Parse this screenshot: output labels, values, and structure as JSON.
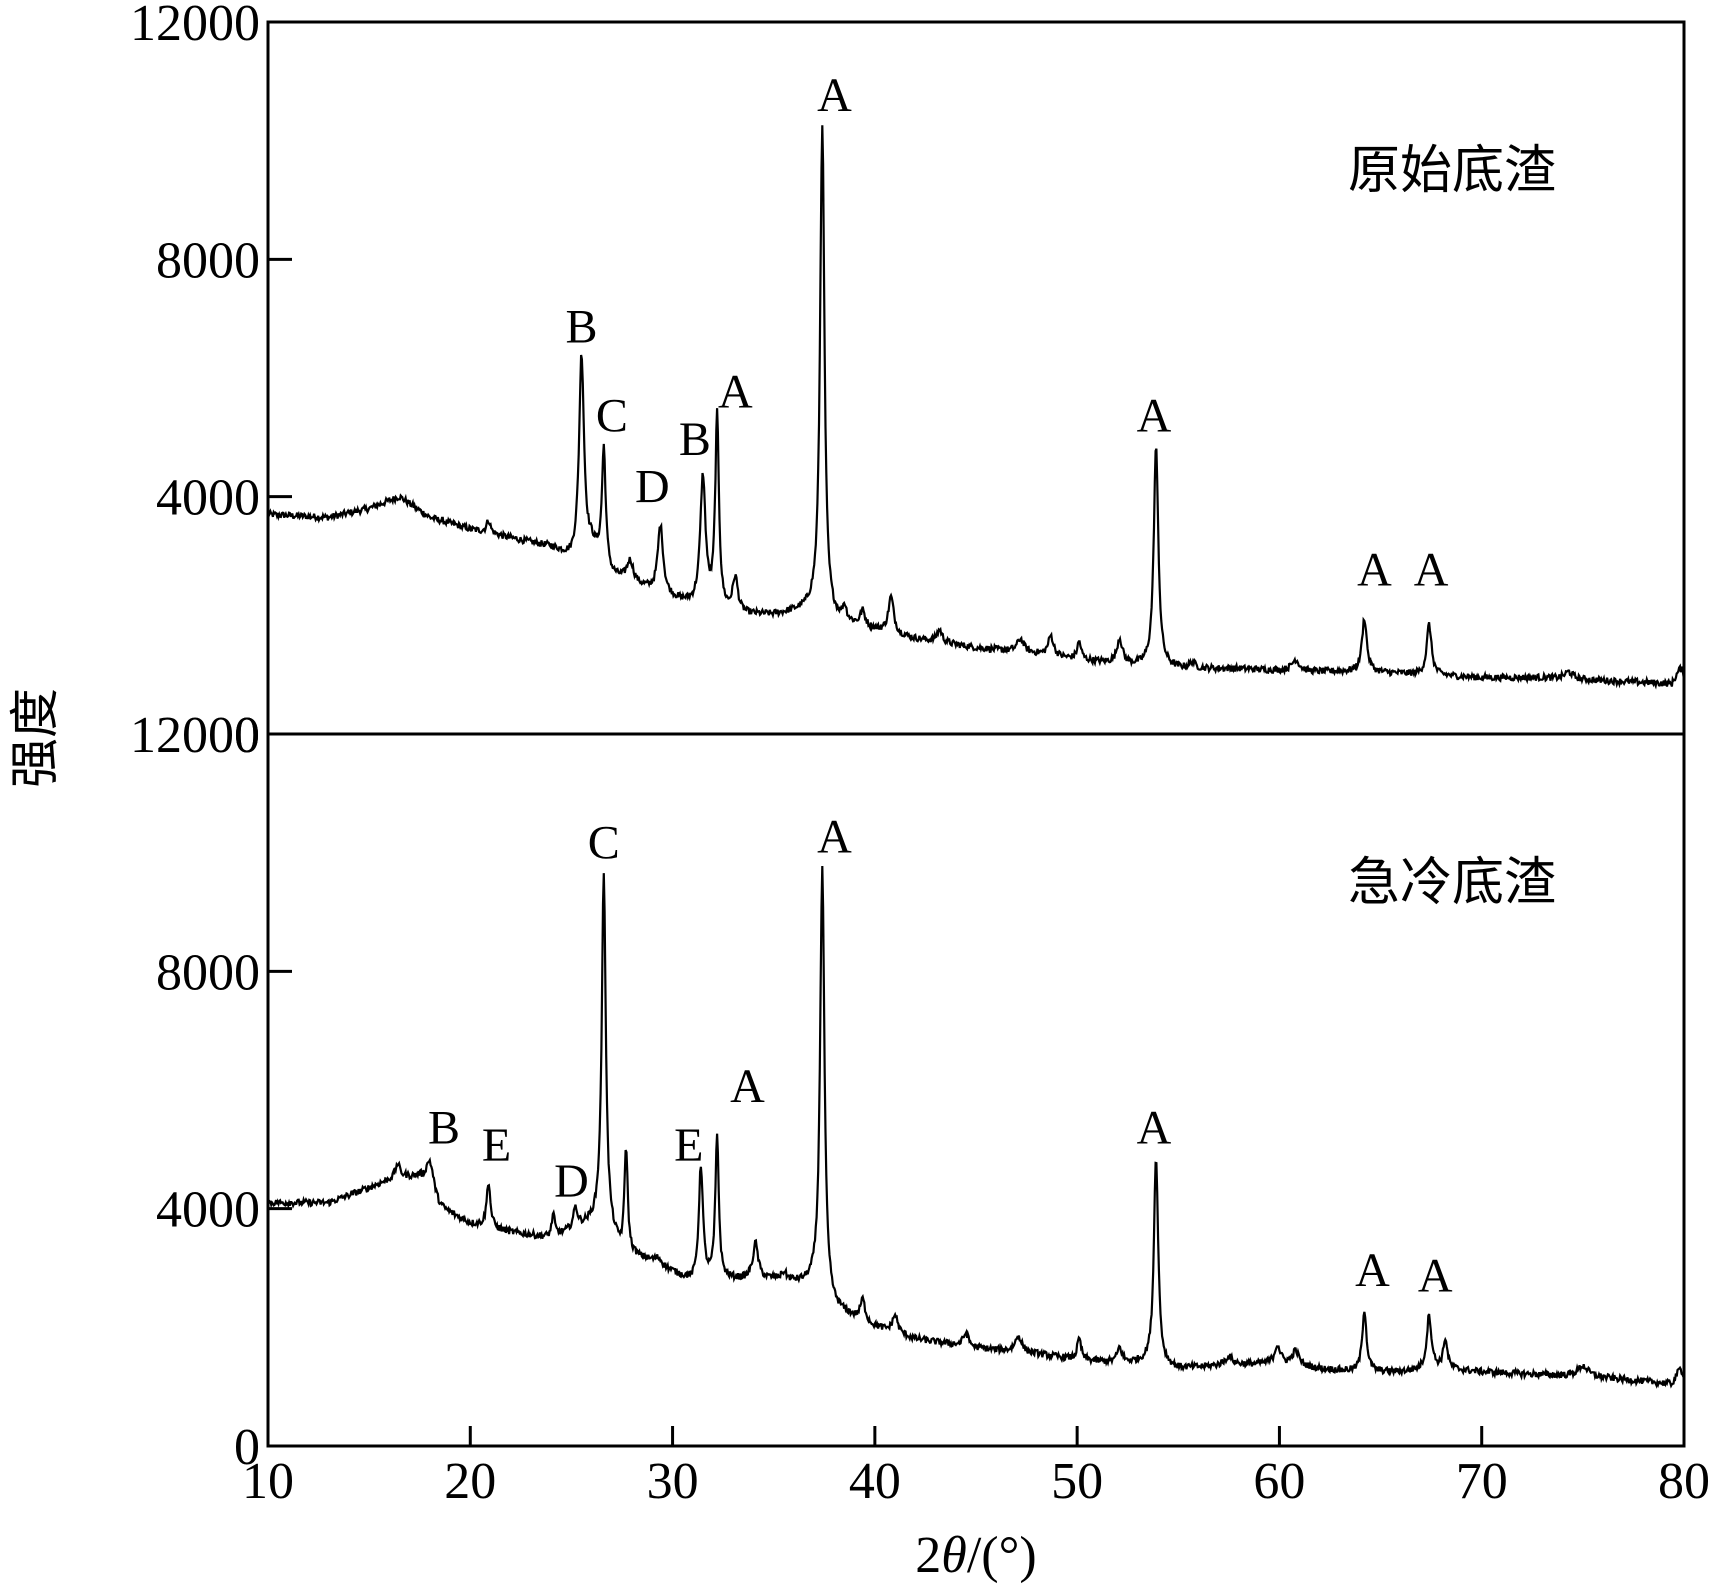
{
  "chart_data": {
    "type": "line",
    "xlabel": "2θ/(°)",
    "xlabel_prefix": "2",
    "xlabel_theta": "θ",
    "xlabel_unit": "/(°)",
    "ylabel": "强度",
    "xlim": [
      10,
      80
    ],
    "ylim": [
      0,
      12000
    ],
    "x_ticks": [
      "10",
      "20",
      "30",
      "40",
      "50",
      "60",
      "70",
      "80"
    ],
    "y_ticks": [
      "0",
      "4000",
      "8000",
      "12000"
    ],
    "grid": false,
    "panels": [
      {
        "title": "原始底渣",
        "baseline": [
          [
            10,
            3700
          ],
          [
            13,
            3650
          ],
          [
            15,
            3800
          ],
          [
            16.5,
            4000
          ],
          [
            18,
            3650
          ],
          [
            20,
            3450
          ],
          [
            22,
            3300
          ],
          [
            24,
            3150
          ],
          [
            25,
            2950
          ],
          [
            26,
            3150
          ],
          [
            27,
            2650
          ],
          [
            29,
            2400
          ],
          [
            31,
            2150
          ],
          [
            33,
            2000
          ],
          [
            35,
            2000
          ],
          [
            37,
            2100
          ],
          [
            38,
            1900
          ],
          [
            40,
            1750
          ],
          [
            42,
            1600
          ],
          [
            45,
            1450
          ],
          [
            48,
            1350
          ],
          [
            50,
            1250
          ],
          [
            53,
            1150
          ],
          [
            55,
            1100
          ],
          [
            58,
            1100
          ],
          [
            61,
            1050
          ],
          [
            64,
            1050
          ],
          [
            67,
            1000
          ],
          [
            70,
            950
          ],
          [
            73,
            950
          ],
          [
            76,
            900
          ],
          [
            79.4,
            850
          ],
          [
            79.8,
            1100
          ],
          [
            80,
            1050
          ]
        ],
        "peaks": [
          {
            "x": 20.9,
            "y": 3600,
            "w": 0.15
          },
          {
            "x": 25.5,
            "y": 6400,
            "w": 0.18
          },
          {
            "x": 26.6,
            "y": 4800,
            "w": 0.14
          },
          {
            "x": 27.9,
            "y": 2900,
            "w": 0.25
          },
          {
            "x": 29.4,
            "y": 3500,
            "w": 0.2
          },
          {
            "x": 31.5,
            "y": 4300,
            "w": 0.2
          },
          {
            "x": 32.2,
            "y": 5300,
            "w": 0.14
          },
          {
            "x": 33.1,
            "y": 2600,
            "w": 0.2
          },
          {
            "x": 37.4,
            "y": 10300,
            "w": 0.16
          },
          {
            "x": 38.5,
            "y": 2100,
            "w": 0.15
          },
          {
            "x": 39.4,
            "y": 2050,
            "w": 0.18
          },
          {
            "x": 40.8,
            "y": 2300,
            "w": 0.2
          },
          {
            "x": 43.2,
            "y": 1750,
            "w": 0.2
          },
          {
            "x": 47.2,
            "y": 1600,
            "w": 0.25
          },
          {
            "x": 48.7,
            "y": 1650,
            "w": 0.2
          },
          {
            "x": 50.1,
            "y": 1550,
            "w": 0.15
          },
          {
            "x": 52.1,
            "y": 1600,
            "w": 0.2
          },
          {
            "x": 53.9,
            "y": 4850,
            "w": 0.17
          },
          {
            "x": 55.7,
            "y": 1200,
            "w": 0.2
          },
          {
            "x": 60.8,
            "y": 1250,
            "w": 0.3
          },
          {
            "x": 64.2,
            "y": 1950,
            "w": 0.18
          },
          {
            "x": 67.4,
            "y": 1850,
            "w": 0.18
          },
          {
            "x": 74.3,
            "y": 1050,
            "w": 0.3
          }
        ],
        "annotations": [
          {
            "label": "A",
            "x": 38.0,
            "y": 10500
          },
          {
            "label": "B",
            "x": 25.5,
            "y": 6600
          },
          {
            "label": "C",
            "x": 27.0,
            "y": 5100
          },
          {
            "label": "D",
            "x": 29.0,
            "y": 3900
          },
          {
            "label": "B",
            "x": 31.1,
            "y": 4700
          },
          {
            "label": "A",
            "x": 33.1,
            "y": 5500
          },
          {
            "label": "A",
            "x": 53.8,
            "y": 5100
          },
          {
            "label": "A",
            "x": 64.7,
            "y": 2500
          },
          {
            "label": "A",
            "x": 67.5,
            "y": 2500
          }
        ]
      },
      {
        "title": "急冷底渣",
        "baseline": [
          [
            10,
            4100
          ],
          [
            13,
            4100
          ],
          [
            15,
            4350
          ],
          [
            16.5,
            4550
          ],
          [
            17.5,
            4500
          ],
          [
            18.5,
            4000
          ],
          [
            20,
            3750
          ],
          [
            22,
            3600
          ],
          [
            24,
            3500
          ],
          [
            25.5,
            3700
          ],
          [
            26.5,
            3800
          ],
          [
            27.5,
            3250
          ],
          [
            29,
            3100
          ],
          [
            31,
            2750
          ],
          [
            33,
            2800
          ],
          [
            35,
            2800
          ],
          [
            37,
            2700
          ],
          [
            38,
            2300
          ],
          [
            40,
            2000
          ],
          [
            42,
            1800
          ],
          [
            45,
            1650
          ],
          [
            48,
            1550
          ],
          [
            50,
            1450
          ],
          [
            52,
            1400
          ],
          [
            53.5,
            1400
          ],
          [
            55,
            1300
          ],
          [
            57,
            1350
          ],
          [
            60,
            1400
          ],
          [
            62,
            1300
          ],
          [
            64,
            1250
          ],
          [
            66,
            1250
          ],
          [
            68,
            1300
          ],
          [
            70,
            1250
          ],
          [
            73,
            1200
          ],
          [
            76,
            1150
          ],
          [
            79.4,
            1050
          ],
          [
            79.8,
            1300
          ],
          [
            80,
            1200
          ]
        ],
        "peaks": [
          {
            "x": 16.4,
            "y": 4750,
            "w": 0.15
          },
          {
            "x": 18.0,
            "y": 4800,
            "w": 0.3
          },
          {
            "x": 20.9,
            "y": 4450,
            "w": 0.14
          },
          {
            "x": 24.1,
            "y": 3900,
            "w": 0.12
          },
          {
            "x": 25.2,
            "y": 4000,
            "w": 0.15
          },
          {
            "x": 26.6,
            "y": 9650,
            "w": 0.15
          },
          {
            "x": 27.7,
            "y": 5000,
            "w": 0.12
          },
          {
            "x": 29.3,
            "y": 3150,
            "w": 0.25
          },
          {
            "x": 31.4,
            "y": 4700,
            "w": 0.16
          },
          {
            "x": 32.2,
            "y": 5200,
            "w": 0.13
          },
          {
            "x": 34.1,
            "y": 3400,
            "w": 0.2
          },
          {
            "x": 35.5,
            "y": 2900,
            "w": 0.2
          },
          {
            "x": 37.4,
            "y": 9750,
            "w": 0.16
          },
          {
            "x": 39.4,
            "y": 2450,
            "w": 0.18
          },
          {
            "x": 41.0,
            "y": 2200,
            "w": 0.2
          },
          {
            "x": 44.5,
            "y": 1900,
            "w": 0.2
          },
          {
            "x": 47.1,
            "y": 1850,
            "w": 0.25
          },
          {
            "x": 50.1,
            "y": 1800,
            "w": 0.15
          },
          {
            "x": 52.1,
            "y": 1650,
            "w": 0.18
          },
          {
            "x": 53.9,
            "y": 4900,
            "w": 0.16
          },
          {
            "x": 57.5,
            "y": 1500,
            "w": 0.3
          },
          {
            "x": 59.9,
            "y": 1700,
            "w": 0.2
          },
          {
            "x": 60.8,
            "y": 1600,
            "w": 0.25
          },
          {
            "x": 64.2,
            "y": 2300,
            "w": 0.16
          },
          {
            "x": 67.4,
            "y": 2200,
            "w": 0.18
          },
          {
            "x": 68.2,
            "y": 1800,
            "w": 0.15
          },
          {
            "x": 75.0,
            "y": 1350,
            "w": 0.4
          }
        ],
        "annotations": [
          {
            "label": "A",
            "x": 38.0,
            "y": 10000
          },
          {
            "label": "C",
            "x": 26.6,
            "y": 9900
          },
          {
            "label": "B",
            "x": 18.7,
            "y": 5100
          },
          {
            "label": "E",
            "x": 21.3,
            "y": 4800
          },
          {
            "label": "D",
            "x": 25.0,
            "y": 4200
          },
          {
            "label": "E",
            "x": 30.8,
            "y": 4800
          },
          {
            "label": "A",
            "x": 33.7,
            "y": 5800
          },
          {
            "label": "A",
            "x": 53.8,
            "y": 5100
          },
          {
            "label": "A",
            "x": 64.6,
            "y": 2700
          },
          {
            "label": "A",
            "x": 67.7,
            "y": 2600
          }
        ]
      }
    ]
  }
}
